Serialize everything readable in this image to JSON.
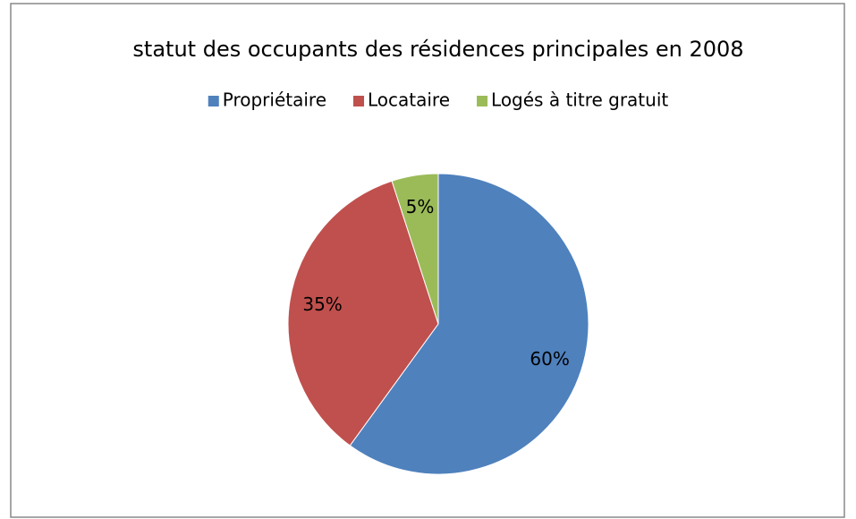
{
  "chart_data": {
    "type": "pie",
    "title": "statut des occupants des résidences principales en 2008",
    "categories": [
      "Propriétaire",
      "Locataire",
      "Logés à titre gratuit"
    ],
    "values": [
      60,
      35,
      5
    ],
    "value_labels": [
      "60%",
      "35%",
      "5%"
    ],
    "colors": [
      "#4f81bd",
      "#c0504d",
      "#9bbb59"
    ],
    "legend": "top"
  }
}
